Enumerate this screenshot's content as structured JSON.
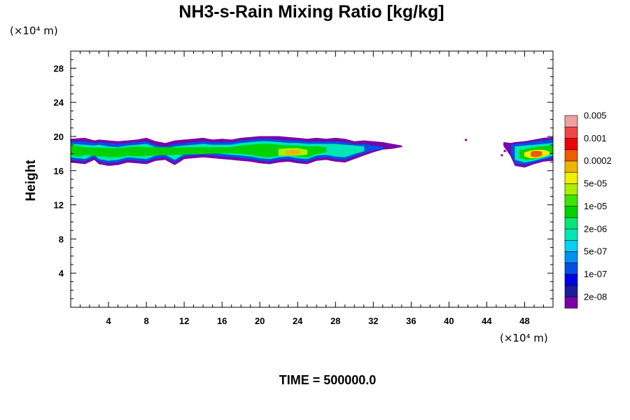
{
  "chart_data": {
    "type": "heatmap",
    "title": "NH3-s-Rain Mixing Ratio [kg/kg]",
    "ylabel": "Height",
    "x_unit": "(×10⁴ m)",
    "y_unit": "(×10⁴ m)",
    "time_label": "TIME = 500000.0",
    "xlim": [
      0,
      51
    ],
    "ylim": [
      0,
      30
    ],
    "x_ticks": [
      4,
      8,
      12,
      16,
      20,
      24,
      28,
      32,
      36,
      40,
      44,
      48
    ],
    "y_ticks": [
      4,
      8,
      12,
      16,
      20,
      24,
      28
    ],
    "colorbar": {
      "colors": [
        "#7a00a8",
        "#1c1c9e",
        "#0000e6",
        "#0050e6",
        "#0090f0",
        "#00d2f0",
        "#00e6b4",
        "#00e678",
        "#00d200",
        "#3ce600",
        "#aaf000",
        "#f0f000",
        "#f0b400",
        "#f05a00",
        "#f00000",
        "#f04646",
        "#f0a0a0"
      ],
      "labels": [
        "2e-08",
        "1e-07",
        "5e-07",
        "2e-06",
        "1e-05",
        "5e-05",
        "0.0002",
        "0.001",
        "0.005"
      ]
    },
    "layers": [
      {
        "level": 0,
        "x": [
          0.0,
          1.5,
          2.5,
          3.0,
          4.0,
          5.0,
          6.0,
          7.0,
          8.0,
          9.0,
          10.0,
          11.0,
          12.0,
          13.0,
          14.0,
          15.0,
          16.0,
          17.0,
          18.0,
          19.0,
          20.0,
          21.0,
          22.0,
          23.0,
          24.0,
          25.0,
          26.0,
          27.0,
          28.0,
          29.0,
          30.0,
          31.0,
          32.0,
          33.0,
          34.0,
          35.0
        ],
        "top": [
          19.7,
          19.8,
          19.5,
          19.6,
          19.5,
          19.4,
          19.5,
          19.6,
          19.8,
          19.4,
          19.2,
          19.5,
          19.6,
          19.7,
          19.8,
          19.6,
          19.7,
          19.6,
          19.8,
          19.9,
          20.0,
          20.0,
          20.0,
          19.9,
          19.8,
          19.7,
          19.8,
          19.7,
          19.8,
          19.7,
          19.4,
          19.5,
          19.4,
          19.3,
          19.1,
          18.9
        ],
        "bottom": [
          17.0,
          16.8,
          17.3,
          16.8,
          16.6,
          16.7,
          17.0,
          16.9,
          16.8,
          17.2,
          17.3,
          16.7,
          17.4,
          17.5,
          17.6,
          17.5,
          17.4,
          17.3,
          17.2,
          17.1,
          16.9,
          16.8,
          17.0,
          17.1,
          16.9,
          16.8,
          17.2,
          17.3,
          17.1,
          17.0,
          17.4,
          17.8,
          18.2,
          18.5,
          18.6,
          18.8
        ]
      },
      {
        "level": 3,
        "x": [
          0.0,
          1.5,
          2.5,
          3.0,
          4.0,
          5.0,
          6.0,
          7.0,
          8.0,
          9.0,
          10.0,
          11.0,
          12.0,
          13.0,
          14.0,
          15.0,
          16.0,
          17.0,
          18.0,
          19.0,
          20.0,
          21.0,
          22.0,
          23.0,
          24.0,
          25.0,
          26.0,
          27.0,
          28.0,
          29.0,
          30.0,
          31.0,
          32.0,
          33.0
        ],
        "top": [
          19.4,
          19.4,
          19.2,
          19.3,
          19.2,
          19.1,
          19.2,
          19.3,
          19.4,
          19.0,
          18.8,
          19.1,
          19.2,
          19.3,
          19.4,
          19.3,
          19.3,
          19.3,
          19.5,
          19.6,
          19.7,
          19.7,
          19.6,
          19.5,
          19.5,
          19.4,
          19.4,
          19.4,
          19.4,
          19.3,
          19.1,
          19.1,
          18.9,
          18.8
        ],
        "bottom": [
          17.3,
          17.1,
          17.6,
          17.1,
          16.9,
          17.0,
          17.3,
          17.2,
          17.1,
          17.5,
          17.6,
          17.0,
          17.7,
          17.8,
          17.9,
          17.8,
          17.7,
          17.6,
          17.5,
          17.4,
          17.2,
          17.1,
          17.3,
          17.4,
          17.2,
          17.1,
          17.5,
          17.6,
          17.4,
          17.3,
          17.7,
          18.1,
          18.4,
          18.6
        ]
      },
      {
        "level": 6,
        "x": [
          0.0,
          1.5,
          2.5,
          3.0,
          4.0,
          5.0,
          6.0,
          7.0,
          8.0,
          9.0,
          10.0,
          11.0,
          12.0,
          13.0,
          14.0,
          15.0,
          16.0,
          17.0,
          18.0,
          19.0,
          20.0,
          21.0,
          22.0,
          23.0,
          24.0,
          25.0,
          26.0,
          27.0,
          28.0,
          29.0,
          30.0,
          31.0
        ],
        "top": [
          19.1,
          19.0,
          18.9,
          19.0,
          18.8,
          18.7,
          18.9,
          19.0,
          19.1,
          18.7,
          18.5,
          18.8,
          18.9,
          19.0,
          19.1,
          19.0,
          19.0,
          19.0,
          19.2,
          19.3,
          19.4,
          19.4,
          19.3,
          19.2,
          19.2,
          19.1,
          19.1,
          19.1,
          19.1,
          19.0,
          18.9,
          18.8
        ],
        "bottom": [
          17.6,
          17.4,
          17.9,
          17.4,
          17.2,
          17.3,
          17.6,
          17.5,
          17.4,
          17.8,
          17.9,
          17.3,
          18.0,
          18.1,
          18.2,
          18.1,
          18.0,
          17.9,
          17.8,
          17.7,
          17.5,
          17.4,
          17.6,
          17.7,
          17.5,
          17.4,
          17.8,
          17.9,
          17.7,
          17.6,
          18.0,
          18.3
        ]
      },
      {
        "level": 8,
        "x": [
          0.0,
          1.0,
          1.5,
          4.0,
          5.0,
          6.0,
          7.0,
          8.0,
          17.0,
          18.0,
          19.0,
          20.0,
          21.0,
          22.0,
          23.0,
          24.0,
          25.0,
          26.0,
          27.0
        ],
        "top": [
          18.9,
          18.8,
          18.7,
          18.6,
          18.6,
          18.7,
          18.8,
          18.7,
          18.7,
          18.9,
          19.0,
          19.1,
          19.1,
          19.0,
          18.9,
          18.9,
          18.8,
          18.8,
          18.7
        ],
        "bottom": [
          17.8,
          17.7,
          17.9,
          17.6,
          17.6,
          17.8,
          17.7,
          17.8,
          18.1,
          18.0,
          17.9,
          17.7,
          17.6,
          17.8,
          17.9,
          17.7,
          17.6,
          18.0,
          18.2
        ]
      },
      {
        "level": 10,
        "x": [
          22.0,
          23.0,
          24.0,
          25.0
        ],
        "top": [
          18.5,
          18.6,
          18.6,
          18.4
        ],
        "bottom": [
          17.8,
          17.8,
          17.8,
          17.9
        ]
      },
      {
        "level": 12,
        "x": [
          22.8,
          23.5,
          24.2
        ],
        "top": [
          18.3,
          18.4,
          18.3
        ],
        "bottom": [
          17.9,
          17.9,
          18.0
        ]
      },
      {
        "level": 0,
        "x": [
          45.8,
          46.5,
          47.0,
          48.0,
          49.0,
          50.0,
          51.0
        ],
        "top": [
          19.3,
          19.2,
          19.3,
          19.4,
          19.6,
          19.8,
          19.9
        ],
        "bottom": [
          18.9,
          17.8,
          16.6,
          16.4,
          16.8,
          17.1,
          17.2
        ]
      },
      {
        "level": 3,
        "x": [
          46.6,
          47.0,
          48.0,
          49.0,
          50.0,
          51.0
        ],
        "top": [
          19.0,
          19.1,
          19.2,
          19.4,
          19.5,
          19.6
        ],
        "bottom": [
          18.0,
          16.9,
          16.7,
          17.0,
          17.3,
          17.5
        ]
      },
      {
        "level": 6,
        "x": [
          47.0,
          48.0,
          49.0,
          50.0,
          51.0
        ],
        "top": [
          18.8,
          18.9,
          19.0,
          19.1,
          19.2
        ],
        "bottom": [
          17.3,
          17.0,
          17.2,
          17.5,
          17.8
        ]
      },
      {
        "level": 8,
        "x": [
          47.5,
          48.2,
          49.0,
          50.0,
          51.0
        ],
        "top": [
          18.4,
          18.5,
          18.7,
          18.8,
          18.9
        ],
        "bottom": [
          17.5,
          17.3,
          17.4,
          17.7,
          18.0
        ]
      },
      {
        "level": 11,
        "x": [
          48.0,
          48.6,
          49.2,
          50.0,
          50.6
        ],
        "top": [
          18.1,
          18.3,
          18.4,
          18.4,
          18.2
        ],
        "bottom": [
          17.7,
          17.5,
          17.5,
          17.7,
          17.9
        ]
      },
      {
        "level": 13,
        "x": [
          48.7,
          49.2,
          49.8
        ],
        "top": [
          18.2,
          18.3,
          18.2
        ],
        "bottom": [
          17.7,
          17.6,
          17.8
        ]
      }
    ],
    "specks": [
      [
        41.8,
        19.6,
        0
      ],
      [
        45.6,
        17.8,
        0
      ],
      [
        45.9,
        18.3,
        0
      ]
    ]
  }
}
